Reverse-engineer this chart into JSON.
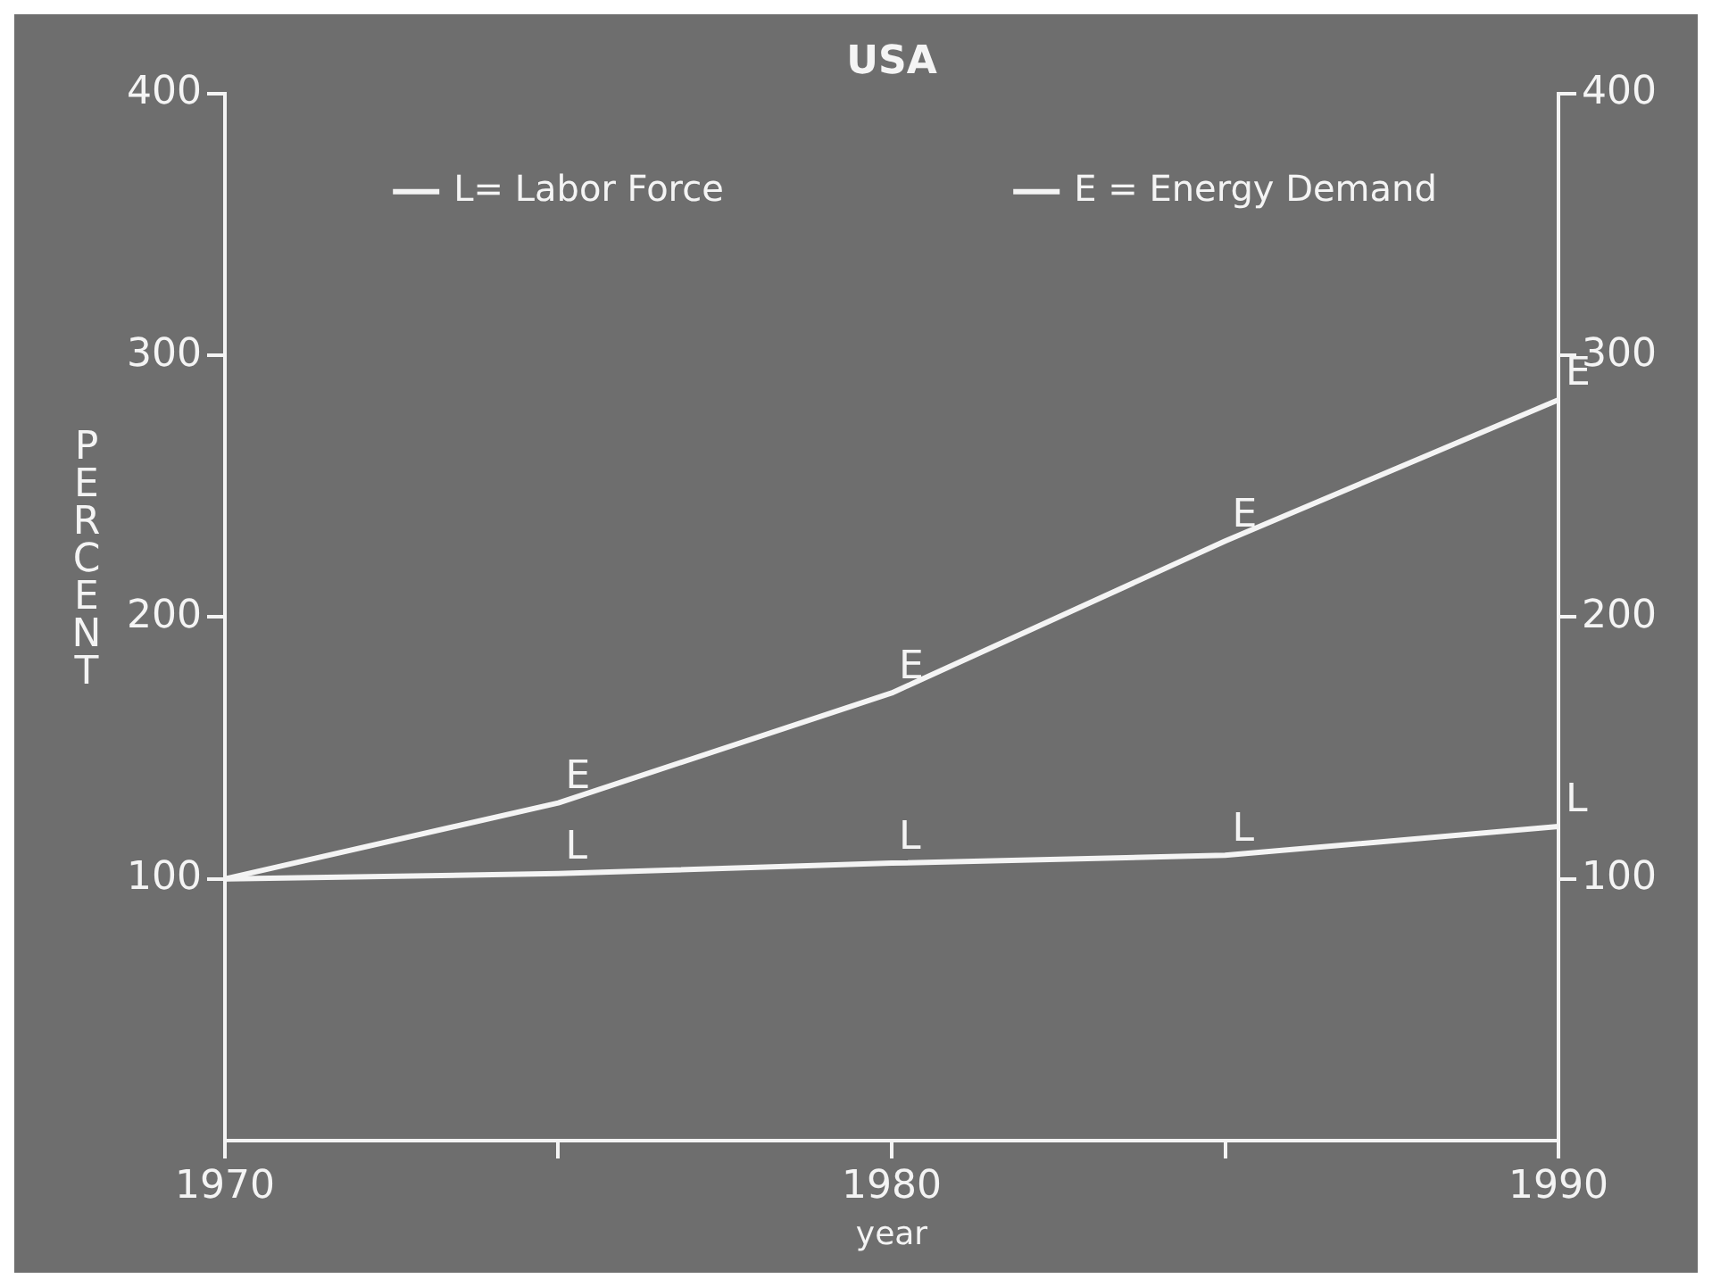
{
  "chart_data": {
    "type": "line",
    "title": "USA",
    "xlabel": "year",
    "ylabel": "PERCENT",
    "x": [
      1970,
      1975,
      1980,
      1985,
      1990
    ],
    "series": [
      {
        "name": "L= Labor Force",
        "color": "#f4f4f4",
        "values": [
          100,
          102,
          106,
          109,
          120
        ]
      },
      {
        "name": "E = Energy Demand",
        "color": "#f4f4f4",
        "values": [
          100,
          129,
          171,
          229,
          283
        ]
      }
    ],
    "xlim": [
      1970,
      1990
    ],
    "xticks": [
      1970,
      {
        "value": 1975,
        "label": null
      },
      1980,
      {
        "value": 1985,
        "label": null
      },
      1990
    ],
    "ylim": [
      0,
      400
    ],
    "yticks": [
      100,
      200,
      300,
      400
    ],
    "y2lim": [
      0,
      400
    ],
    "y2ticks": [
      100,
      200,
      300,
      400
    ],
    "legend": "top",
    "grid": false,
    "marker": "none",
    "line_style": "solid",
    "annotations": [
      {
        "text": "L",
        "x": 1975,
        "y": 102
      },
      {
        "text": "L",
        "x": 1980,
        "y": 106
      },
      {
        "text": "L",
        "x": 1985,
        "y": 109
      },
      {
        "text": "L",
        "x": 1990,
        "y": 120
      },
      {
        "text": "E",
        "x": 1975,
        "y": 129
      },
      {
        "text": "E",
        "x": 1980,
        "y": 171
      },
      {
        "text": "E",
        "x": 1985,
        "y": 229
      },
      {
        "text": "E",
        "x": 1990,
        "y": 283
      }
    ]
  }
}
